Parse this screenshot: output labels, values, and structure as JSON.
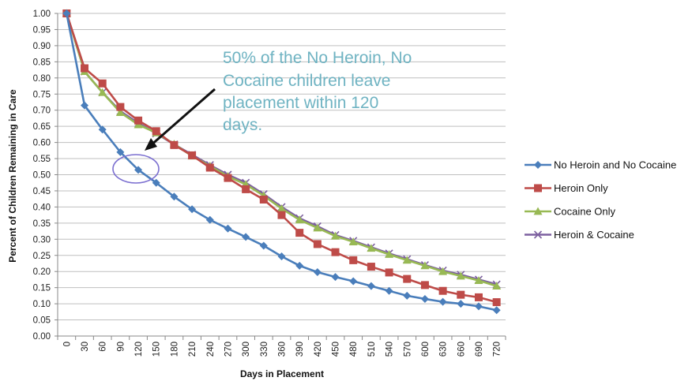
{
  "chart_data": {
    "type": "line",
    "xlabel": "Days in Placement",
    "ylabel": "Percent of Children Remaining in Care",
    "x": [
      0,
      30,
      60,
      90,
      120,
      150,
      180,
      210,
      240,
      270,
      300,
      330,
      360,
      390,
      420,
      450,
      480,
      510,
      540,
      570,
      600,
      630,
      660,
      690,
      720
    ],
    "xticks": [
      "0",
      "30",
      "60",
      "90",
      "120",
      "150",
      "180",
      "210",
      "240",
      "270",
      "300",
      "330",
      "360",
      "390",
      "420",
      "450",
      "480",
      "510",
      "540",
      "570",
      "600",
      "630",
      "660",
      "690",
      "720"
    ],
    "ylim": [
      0,
      1
    ],
    "yticks": [
      "0.00",
      "0.05",
      "0.10",
      "0.15",
      "0.20",
      "0.25",
      "0.30",
      "0.35",
      "0.40",
      "0.45",
      "0.50",
      "0.55",
      "0.60",
      "0.65",
      "0.70",
      "0.75",
      "0.80",
      "0.85",
      "0.90",
      "0.95",
      "1.00"
    ],
    "grid": true,
    "legend_position": "right",
    "series": [
      {
        "name": "No Heroin and No Cocaine",
        "color": "#4a7ebb",
        "marker": "diamond",
        "values": [
          1.0,
          0.715,
          0.64,
          0.57,
          0.515,
          0.475,
          0.432,
          0.393,
          0.36,
          0.333,
          0.307,
          0.28,
          0.247,
          0.218,
          0.198,
          0.183,
          0.17,
          0.155,
          0.14,
          0.125,
          0.115,
          0.106,
          0.1,
          0.092,
          0.08
        ]
      },
      {
        "name": "Heroin Only",
        "color": "#be4b48",
        "marker": "square",
        "values": [
          1.0,
          0.83,
          0.783,
          0.71,
          0.668,
          0.635,
          0.592,
          0.56,
          0.522,
          0.49,
          0.455,
          0.423,
          0.375,
          0.32,
          0.285,
          0.26,
          0.235,
          0.215,
          0.197,
          0.177,
          0.158,
          0.14,
          0.128,
          0.12,
          0.105
        ]
      },
      {
        "name": "Cocaine Only",
        "color": "#98b954",
        "marker": "triangle",
        "values": [
          1.0,
          0.82,
          0.755,
          0.693,
          0.655,
          0.63,
          0.595,
          0.558,
          0.527,
          0.495,
          0.47,
          0.435,
          0.395,
          0.36,
          0.335,
          0.31,
          0.292,
          0.272,
          0.253,
          0.235,
          0.218,
          0.2,
          0.186,
          0.172,
          0.155
        ]
      },
      {
        "name": "Heroin & Cocaine",
        "color": "#7d60a0",
        "marker": "x",
        "values": [
          1.0,
          0.82,
          0.755,
          0.697,
          0.66,
          0.628,
          0.594,
          0.562,
          0.53,
          0.5,
          0.475,
          0.44,
          0.4,
          0.365,
          0.34,
          0.313,
          0.295,
          0.275,
          0.256,
          0.238,
          0.22,
          0.203,
          0.19,
          0.175,
          0.16
        ]
      }
    ],
    "annotation": {
      "lines": [
        "50% of the No Heroin, No",
        "Cocaine children leave",
        "placement within 120",
        "days."
      ],
      "target_x": 120,
      "target_y": 0.515,
      "color": "#6fb3c2"
    }
  }
}
